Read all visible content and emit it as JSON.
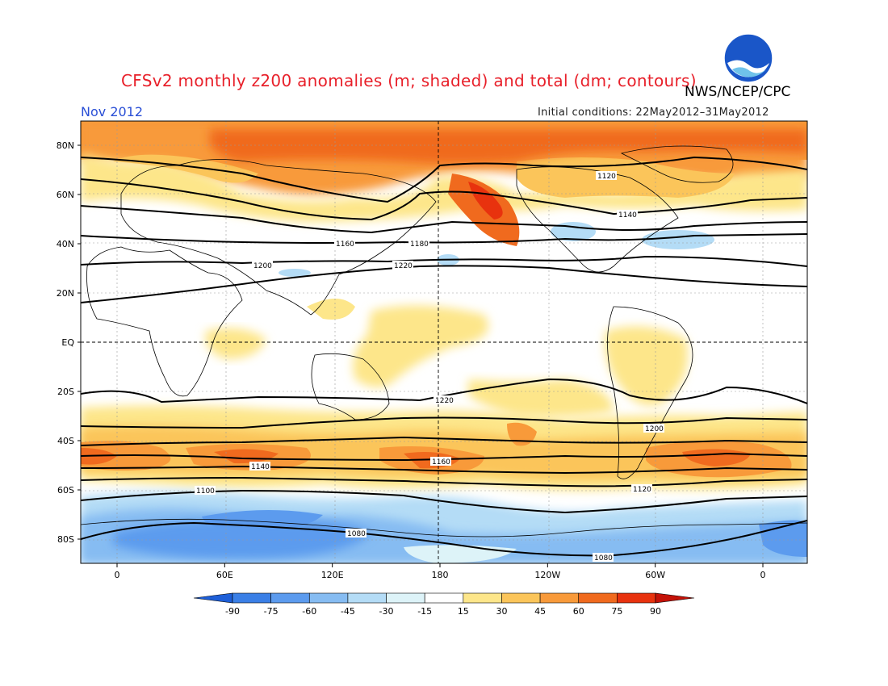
{
  "header": {
    "title": "CFSv2 monthly z200 anomalies (m; shaded) and total (dm; contours)",
    "credit": "NWS/NCEP/CPC",
    "logo_text": "NOAA",
    "month": "Nov 2012",
    "initial_conditions": "Initial conditions: 22May2012–31May2012"
  },
  "axes": {
    "lat_labels": [
      "80N",
      "60N",
      "40N",
      "20N",
      "EQ",
      "20S",
      "40S",
      "60S",
      "80S"
    ],
    "lat_values": [
      80,
      60,
      40,
      20,
      0,
      -20,
      -40,
      -60,
      -80
    ],
    "lon_labels": [
      "0",
      "60E",
      "120E",
      "180",
      "120W",
      "60W",
      "0"
    ],
    "lon_values": [
      0,
      60,
      120,
      180,
      240,
      300,
      360
    ]
  },
  "colorbar": {
    "labels": [
      "-90",
      "-75",
      "-60",
      "-45",
      "-30",
      "-15",
      "15",
      "30",
      "45",
      "60",
      "75",
      "90"
    ],
    "colors": [
      "#1e5fd8",
      "#3a7fe6",
      "#5c9bee",
      "#86bcf2",
      "#b4dcf6",
      "#ddf3f8",
      "#ffffff",
      "#fde68a",
      "#fbc55a",
      "#f89a3a",
      "#f06a1e",
      "#e8320e",
      "#c41208"
    ]
  },
  "contours": {
    "labels": [
      "1080",
      "1100",
      "1120",
      "1140",
      "1160",
      "1180",
      "1200",
      "1220"
    ]
  }
}
